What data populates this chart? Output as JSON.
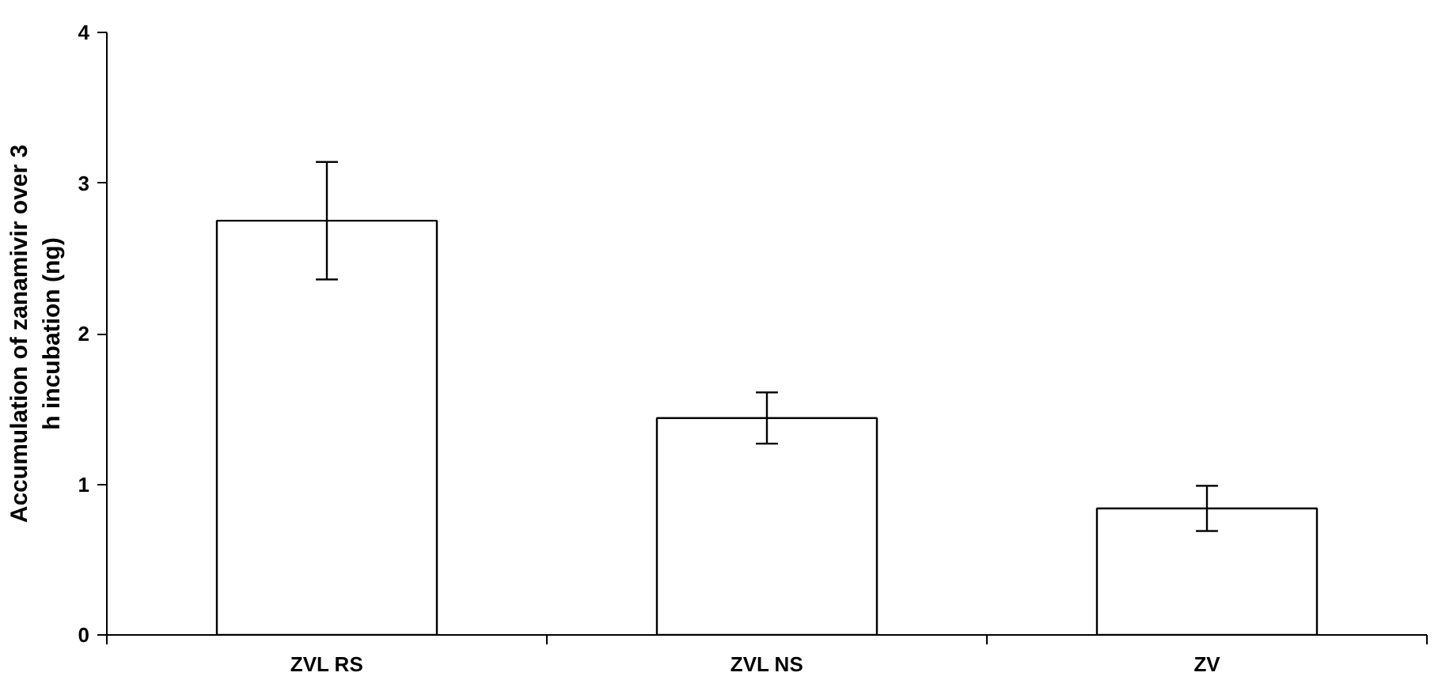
{
  "chart_data": {
    "type": "bar",
    "ylabel": "Accumulation of zanamivir over 3 h incubation (ng)",
    "categories": [
      "ZVL RS",
      "ZVL NS",
      "ZV"
    ],
    "values": [
      2.75,
      1.44,
      0.84
    ],
    "color": "#ffffff",
    "errors": [
      0.39,
      0.17,
      0.15
    ],
    "ylim": [
      0,
      4
    ],
    "yticks": [
      0,
      1,
      2,
      3,
      4
    ],
    "grid": false
  }
}
